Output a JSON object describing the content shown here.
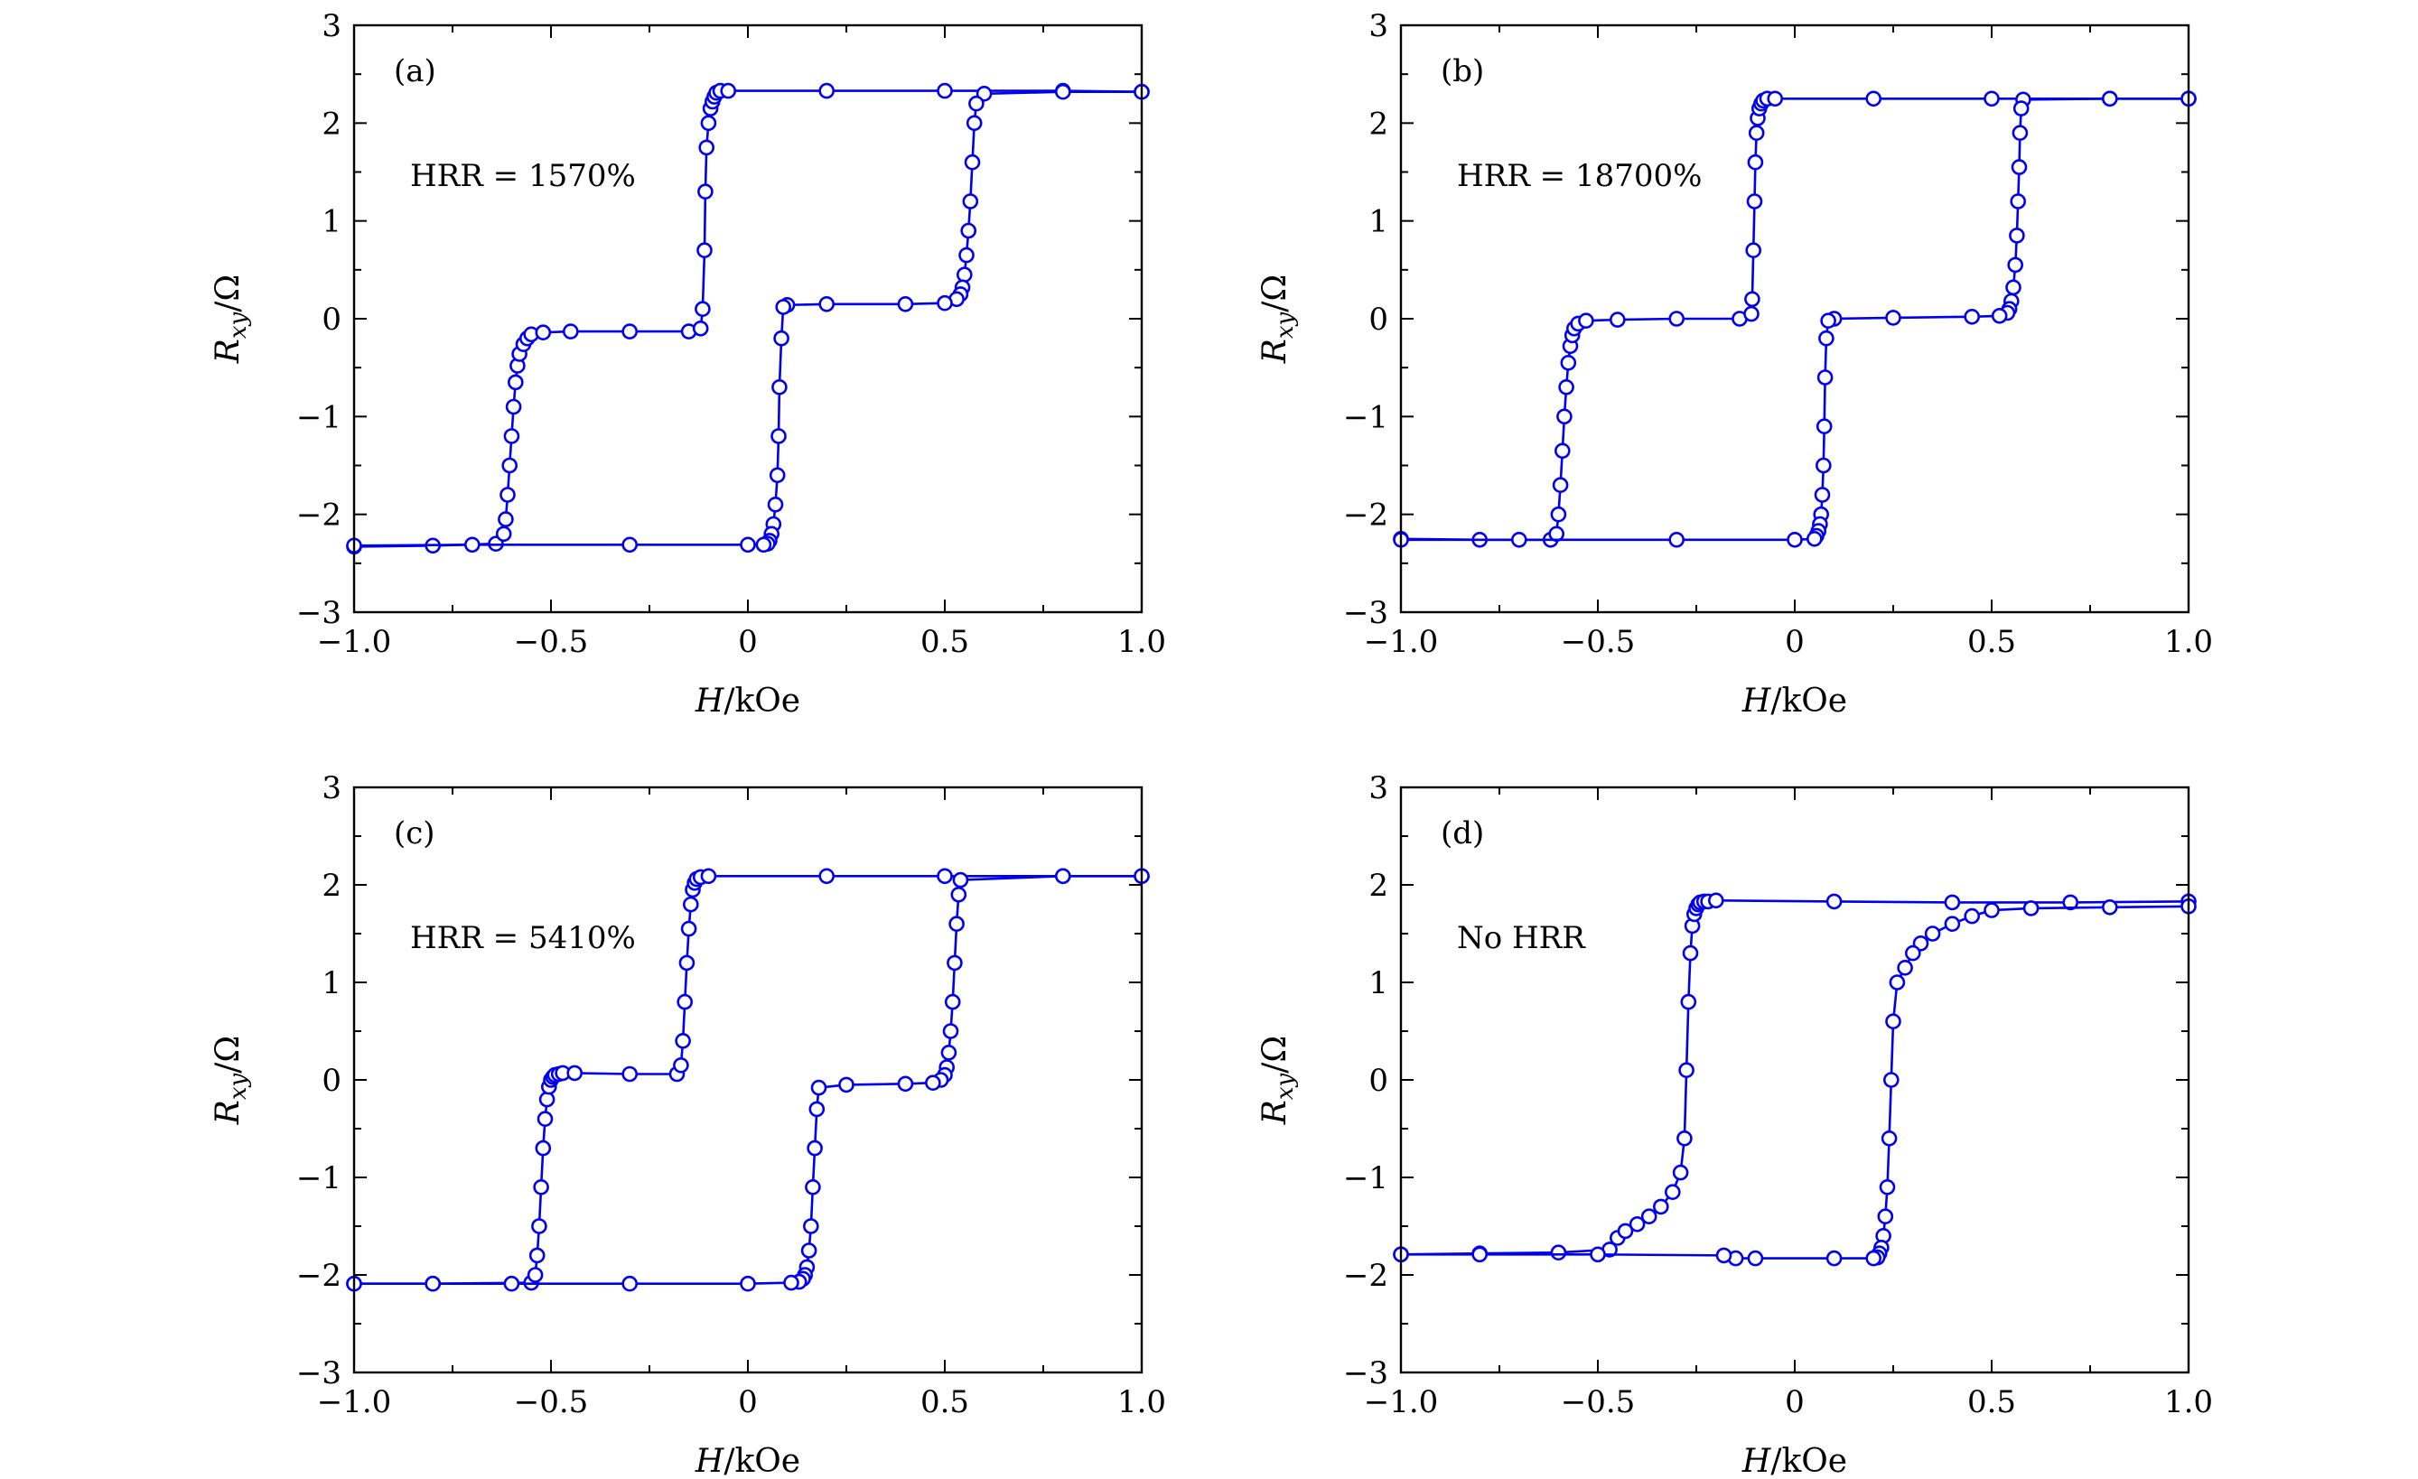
{
  "figure": {
    "xlabel_italic": "H",
    "xlabel_rest": "/kOe",
    "ylabel_main": "R",
    "ylabel_sub": "xy",
    "ylabel_rest": "/Ω"
  },
  "colors": {
    "series": "#0000ee",
    "axes": "#000000",
    "background": "#ffffff"
  },
  "chart_data": [
    {
      "type": "scatter",
      "panel": "(a)",
      "annotation": "HRR = 1570%",
      "xlabel": "H/kOe",
      "ylabel": "Rxy/Ω",
      "xlim": [
        -1.0,
        1.0
      ],
      "ylim": [
        -3,
        3
      ],
      "xticks": [
        "−1.0",
        "−0.5",
        "0",
        "0.5",
        "1.0"
      ],
      "yticks": [
        "−3",
        "−2",
        "−1",
        "0",
        "1",
        "2",
        "3"
      ],
      "grid": false,
      "series": [
        {
          "values": {
            "x": [
              -1.0,
              -0.8,
              -0.64,
              -0.62,
              -0.615,
              -0.61,
              -0.605,
              -0.6,
              -0.595,
              -0.59,
              -0.585,
              -0.58,
              -0.57,
              -0.56,
              -0.55,
              -0.52,
              -0.45,
              -0.3,
              -0.15,
              -0.12,
              -0.115,
              -0.11,
              -0.108,
              -0.105,
              -0.1,
              -0.095,
              -0.09,
              -0.085,
              -0.08,
              -0.07,
              -0.05,
              0.2,
              0.5,
              0.8,
              1.0
            ],
            "y": [
              -2.33,
              -2.32,
              -2.3,
              -2.2,
              -2.05,
              -1.8,
              -1.5,
              -1.2,
              -0.9,
              -0.65,
              -0.48,
              -0.36,
              -0.26,
              -0.2,
              -0.16,
              -0.14,
              -0.13,
              -0.13,
              -0.13,
              -0.1,
              0.1,
              0.7,
              1.3,
              1.75,
              2.0,
              2.15,
              2.22,
              2.27,
              2.31,
              2.33,
              2.33,
              2.33,
              2.33,
              2.33,
              2.32
            ]
          }
        },
        {
          "values": {
            "x": [
              1.0,
              0.8,
              0.6,
              0.58,
              0.575,
              0.57,
              0.565,
              0.56,
              0.555,
              0.55,
              0.545,
              0.54,
              0.53,
              0.5,
              0.4,
              0.2,
              0.1,
              0.09,
              0.085,
              0.08,
              0.078,
              0.075,
              0.07,
              0.065,
              0.06,
              0.055,
              0.05,
              0.04,
              0.0,
              -0.3,
              -0.7,
              -1.0
            ],
            "y": [
              2.32,
              2.32,
              2.3,
              2.2,
              2.0,
              1.6,
              1.2,
              0.9,
              0.65,
              0.45,
              0.32,
              0.25,
              0.2,
              0.16,
              0.15,
              0.15,
              0.14,
              0.12,
              -0.2,
              -0.7,
              -1.2,
              -1.6,
              -1.9,
              -2.1,
              -2.2,
              -2.27,
              -2.3,
              -2.31,
              -2.31,
              -2.31,
              -2.31,
              -2.32
            ]
          }
        }
      ]
    },
    {
      "type": "scatter",
      "panel": "(b)",
      "annotation": "HRR = 18700%",
      "xlabel": "H/kOe",
      "ylabel": "Rxy/Ω",
      "xlim": [
        -1.0,
        1.0
      ],
      "ylim": [
        -3,
        3
      ],
      "xticks": [
        "−1.0",
        "−0.5",
        "0",
        "0.5",
        "1.0"
      ],
      "yticks": [
        "−3",
        "−2",
        "−1",
        "0",
        "1",
        "2",
        "3"
      ],
      "grid": false,
      "series": [
        {
          "values": {
            "x": [
              -1.0,
              -0.8,
              -0.62,
              -0.605,
              -0.6,
              -0.595,
              -0.59,
              -0.585,
              -0.58,
              -0.575,
              -0.57,
              -0.565,
              -0.56,
              -0.55,
              -0.53,
              -0.45,
              -0.3,
              -0.14,
              -0.11,
              -0.108,
              -0.105,
              -0.102,
              -0.1,
              -0.097,
              -0.094,
              -0.09,
              -0.085,
              -0.08,
              -0.07,
              -0.05,
              0.2,
              0.5,
              0.8,
              1.0
            ],
            "y": [
              -2.25,
              -2.26,
              -2.26,
              -2.2,
              -2.0,
              -1.7,
              -1.35,
              -1.0,
              -0.7,
              -0.45,
              -0.28,
              -0.17,
              -0.1,
              -0.05,
              -0.02,
              -0.01,
              0.0,
              0.0,
              0.05,
              0.2,
              0.7,
              1.2,
              1.6,
              1.9,
              2.05,
              2.15,
              2.2,
              2.23,
              2.25,
              2.25,
              2.25,
              2.25,
              2.25,
              2.25
            ]
          }
        },
        {
          "values": {
            "x": [
              1.0,
              0.8,
              0.58,
              0.575,
              0.572,
              0.57,
              0.567,
              0.564,
              0.56,
              0.555,
              0.55,
              0.545,
              0.54,
              0.52,
              0.45,
              0.25,
              0.1,
              0.085,
              0.08,
              0.077,
              0.075,
              0.073,
              0.07,
              0.067,
              0.064,
              0.06,
              0.055,
              0.05,
              0.0,
              -0.3,
              -0.7,
              -1.0
            ],
            "y": [
              2.25,
              2.25,
              2.24,
              2.15,
              1.9,
              1.55,
              1.2,
              0.85,
              0.55,
              0.32,
              0.18,
              0.1,
              0.06,
              0.03,
              0.02,
              0.01,
              0.0,
              -0.02,
              -0.2,
              -0.6,
              -1.1,
              -1.5,
              -1.8,
              -2.0,
              -2.1,
              -2.17,
              -2.22,
              -2.25,
              -2.26,
              -2.26,
              -2.26,
              -2.26
            ]
          }
        }
      ]
    },
    {
      "type": "scatter",
      "panel": "(c)",
      "annotation": "HRR = 5410%",
      "xlabel": "H/kOe",
      "ylabel": "Rxy/Ω",
      "xlim": [
        -1.0,
        1.0
      ],
      "ylim": [
        -3,
        3
      ],
      "xticks": [
        "−1.0",
        "−0.5",
        "0",
        "0.5",
        "1.0"
      ],
      "yticks": [
        "−3",
        "−2",
        "−1",
        "0",
        "1",
        "2",
        "3"
      ],
      "grid": false,
      "series": [
        {
          "values": {
            "x": [
              -1.0,
              -0.8,
              -0.55,
              -0.54,
              -0.535,
              -0.53,
              -0.525,
              -0.52,
              -0.515,
              -0.51,
              -0.505,
              -0.5,
              -0.495,
              -0.49,
              -0.48,
              -0.47,
              -0.44,
              -0.3,
              -0.18,
              -0.17,
              -0.165,
              -0.16,
              -0.155,
              -0.15,
              -0.145,
              -0.14,
              -0.135,
              -0.13,
              -0.12,
              -0.1,
              0.2,
              0.5,
              0.8,
              1.0
            ],
            "y": [
              -2.09,
              -2.09,
              -2.08,
              -2.0,
              -1.8,
              -1.5,
              -1.1,
              -0.7,
              -0.4,
              -0.2,
              -0.07,
              0.0,
              0.03,
              0.05,
              0.06,
              0.07,
              0.07,
              0.06,
              0.06,
              0.15,
              0.4,
              0.8,
              1.2,
              1.55,
              1.8,
              1.95,
              2.02,
              2.06,
              2.08,
              2.09,
              2.09,
              2.09,
              2.09,
              2.09
            ]
          }
        },
        {
          "values": {
            "x": [
              1.0,
              0.8,
              0.54,
              0.535,
              0.53,
              0.525,
              0.52,
              0.515,
              0.51,
              0.505,
              0.5,
              0.49,
              0.47,
              0.4,
              0.25,
              0.18,
              0.175,
              0.17,
              0.165,
              0.16,
              0.155,
              0.15,
              0.145,
              0.14,
              0.13,
              0.11,
              0.0,
              -0.3,
              -0.6,
              -0.8,
              -1.0
            ],
            "y": [
              2.09,
              2.09,
              2.05,
              1.9,
              1.6,
              1.2,
              0.8,
              0.5,
              0.28,
              0.13,
              0.05,
              0.0,
              -0.03,
              -0.04,
              -0.05,
              -0.08,
              -0.3,
              -0.7,
              -1.1,
              -1.5,
              -1.75,
              -1.92,
              -2.0,
              -2.04,
              -2.07,
              -2.08,
              -2.09,
              -2.09,
              -2.09,
              -2.09,
              -2.09
            ]
          }
        }
      ]
    },
    {
      "type": "scatter",
      "panel": "(d)",
      "annotation": "No HRR",
      "xlabel": "H/kOe",
      "ylabel": "Rxy/Ω",
      "xlim": [
        -1.0,
        1.0
      ],
      "ylim": [
        -3,
        3
      ],
      "xticks": [
        "−1.0",
        "−0.5",
        "0",
        "0.5",
        "1.0"
      ],
      "yticks": [
        "−3",
        "−2",
        "−1",
        "0",
        "1",
        "2",
        "3"
      ],
      "grid": false,
      "series": [
        {
          "values": {
            "x": [
              -1.0,
              -0.8,
              -0.6,
              -0.47,
              -0.45,
              -0.43,
              -0.4,
              -0.37,
              -0.34,
              -0.31,
              -0.29,
              -0.28,
              -0.275,
              -0.27,
              -0.265,
              -0.26,
              -0.255,
              -0.25,
              -0.245,
              -0.24,
              -0.23,
              -0.22,
              -0.2,
              0.1,
              0.4,
              0.7,
              1.0
            ],
            "y": [
              -1.79,
              -1.78,
              -1.77,
              -1.74,
              -1.62,
              -1.55,
              -1.48,
              -1.4,
              -1.3,
              -1.15,
              -0.95,
              -0.6,
              0.1,
              0.8,
              1.3,
              1.58,
              1.7,
              1.76,
              1.8,
              1.82,
              1.83,
              1.83,
              1.84,
              1.83,
              1.82,
              1.82,
              1.83
            ]
          }
        },
        {
          "values": {
            "x": [
              1.0,
              0.8,
              0.6,
              0.5,
              0.45,
              0.4,
              0.35,
              0.32,
              0.3,
              0.28,
              0.26,
              0.25,
              0.245,
              0.24,
              0.235,
              0.23,
              0.225,
              0.22,
              0.215,
              0.21,
              0.2,
              0.1,
              -0.1,
              -0.15,
              -0.18,
              -0.5,
              -0.8,
              -1.0
            ],
            "y": [
              1.78,
              1.77,
              1.76,
              1.74,
              1.68,
              1.6,
              1.5,
              1.4,
              1.3,
              1.15,
              1.0,
              0.6,
              0.0,
              -0.6,
              -1.1,
              -1.4,
              -1.6,
              -1.72,
              -1.78,
              -1.82,
              -1.83,
              -1.83,
              -1.83,
              -1.83,
              -1.8,
              -1.79,
              -1.79,
              -1.79
            ]
          }
        }
      ]
    }
  ]
}
